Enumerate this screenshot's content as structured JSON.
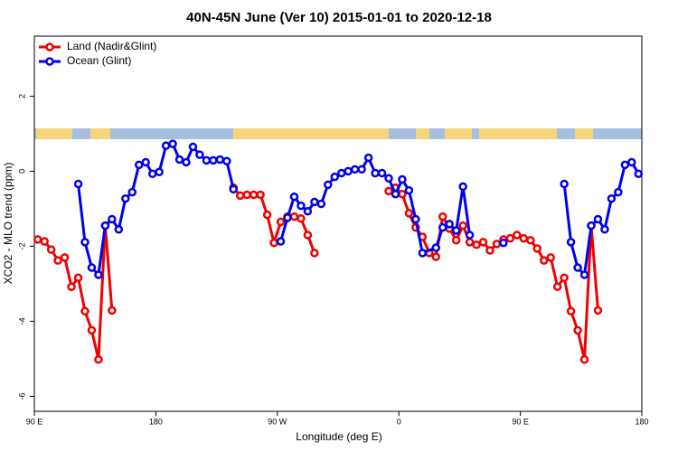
{
  "chart_data": {
    "type": "line",
    "title": "40N-45N June (Ver 10)   2015-01-01 to 2020-12-18",
    "xlabel": "Longitude (deg E)",
    "ylabel": "XCO2 - MLO trend (ppm)",
    "xlim": [
      90,
      540
    ],
    "ylim": [
      -6.4,
      3.6
    ],
    "xticks": [
      {
        "value": 90,
        "label": "90 E"
      },
      180,
      {
        "value": 270,
        "label": "90 W"
      },
      {
        "value": 360,
        "label": "0"
      },
      {
        "value": 450,
        "label": "90 E"
      },
      {
        "value": 540,
        "label": "180"
      }
    ],
    "yticks": [
      -6,
      -4,
      -2,
      0,
      2
    ],
    "legend": "top-left",
    "series": [
      {
        "name": "Land (Nadir&Glint)",
        "color": "#ee0000",
        "x": [
          92.5,
          97.5,
          102.5,
          107.5,
          112.5,
          117.5,
          122.5,
          127.5,
          132.5,
          137.5,
          142.5,
          147.5,
          null,
          237.5,
          242.5,
          247.5,
          252.5,
          257.5,
          262.5,
          267.5,
          272.5,
          277.5,
          282.5,
          287.5,
          292.5,
          297.5,
          null,
          352.5,
          357.5,
          362.5,
          367.5,
          372.5,
          377.5,
          382.5,
          387.5,
          392.5,
          397.5,
          402.5,
          407.5,
          412.5,
          417.5,
          422.5,
          427.5,
          432.5,
          437.5,
          442.5,
          447.5,
          452.5,
          457.5,
          462.5,
          467.5,
          472.5,
          477.5,
          482.5,
          487.5,
          492.5,
          497.5,
          502.5,
          507.5
        ],
        "values": [
          -1.82,
          -1.87,
          -2.09,
          -2.38,
          -2.3,
          -3.08,
          -2.84,
          -3.73,
          -4.24,
          -5.02,
          -1.45,
          -3.71,
          null,
          -0.44,
          -0.65,
          -0.63,
          -0.63,
          -0.63,
          -1.16,
          -1.91,
          -1.35,
          -1.21,
          -1.21,
          -1.26,
          -1.7,
          -2.18,
          null,
          -0.53,
          -0.44,
          -0.61,
          -1.12,
          -1.5,
          -1.75,
          -2.18,
          -2.28,
          -1.21,
          -1.53,
          -1.84,
          -1.45,
          -1.89,
          -1.96,
          -1.89,
          -2.11,
          -1.94,
          -1.82,
          -1.79,
          -1.7,
          -1.79,
          -1.84,
          -2.06,
          -2.38,
          -2.3,
          -3.08,
          -2.84,
          -3.73,
          -4.24,
          -5.02,
          -1.45,
          -3.71
        ]
      },
      {
        "name": "Ocean (Glint)",
        "color": "#0000ee",
        "x": [
          122.5,
          127.5,
          132.5,
          137.5,
          142.5,
          147.5,
          152.5,
          157.5,
          162.5,
          167.5,
          172.5,
          177.5,
          182.5,
          187.5,
          192.5,
          197.5,
          202.5,
          207.5,
          212.5,
          217.5,
          222.5,
          227.5,
          232.5,
          237.5,
          null,
          272.5,
          277.5,
          282.5,
          287.5,
          292.5,
          297.5,
          302.5,
          307.5,
          312.5,
          317.5,
          322.5,
          327.5,
          332.5,
          337.5,
          342.5,
          347.5,
          352.5,
          357.5,
          362.5,
          367.5,
          372.5,
          377.5,
          387.5,
          392.5,
          397.5,
          402.5,
          407.5,
          412.5,
          null,
          437.5,
          null,
          482.5,
          487.5,
          492.5,
          497.5,
          502.5,
          507.5,
          512.5,
          517.5,
          522.5,
          527.5,
          532.5,
          537.5
        ],
        "values": [
          -0.34,
          -1.89,
          -2.57,
          -2.76,
          -1.45,
          -1.28,
          -1.55,
          -0.73,
          -0.56,
          0.17,
          0.24,
          -0.07,
          -0.02,
          0.68,
          0.73,
          0.31,
          0.24,
          0.65,
          0.44,
          0.29,
          0.29,
          0.31,
          0.27,
          -0.48,
          null,
          -1.87,
          -1.24,
          -0.68,
          -0.92,
          -1.07,
          -0.82,
          -0.87,
          -0.36,
          -0.15,
          -0.05,
          0.0,
          0.05,
          0.05,
          0.36,
          -0.05,
          -0.05,
          -0.19,
          -0.61,
          -0.22,
          -0.51,
          -1.28,
          -2.18,
          -2.04,
          -1.5,
          -1.41,
          -1.58,
          -0.41,
          -1.7,
          null,
          -1.91,
          null,
          -0.34,
          -1.89,
          -2.57,
          -2.76,
          -1.45,
          -1.28,
          -1.55,
          -0.73,
          -0.56,
          0.17,
          0.24,
          -0.07
        ]
      }
    ]
  }
}
